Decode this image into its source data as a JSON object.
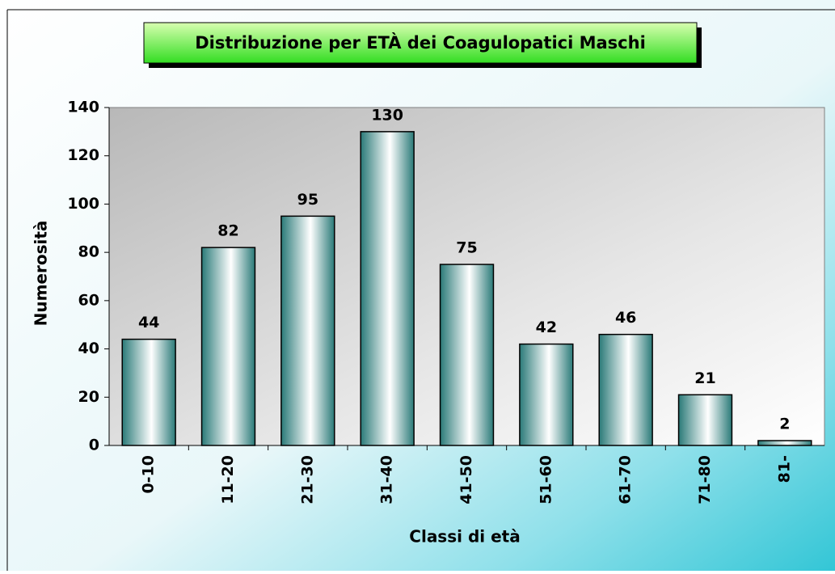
{
  "chart_data": {
    "type": "bar",
    "title": "Distribuzione per ETÀ dei Coagulopatici Maschi",
    "x_label": "Classi di età",
    "y_label": "Numerosità",
    "categories": [
      "0-10",
      "11-20",
      "21-30",
      "31-40",
      "41-50",
      "51-60",
      "61-70",
      "71-80",
      "81-"
    ],
    "values": [
      44,
      82,
      95,
      130,
      75,
      42,
      46,
      21,
      2
    ],
    "color": "#2a7a78",
    "ylim": [
      0,
      140
    ],
    "yticks": [
      0,
      20,
      40,
      60,
      80,
      100,
      120,
      140
    ],
    "grid": false
  }
}
